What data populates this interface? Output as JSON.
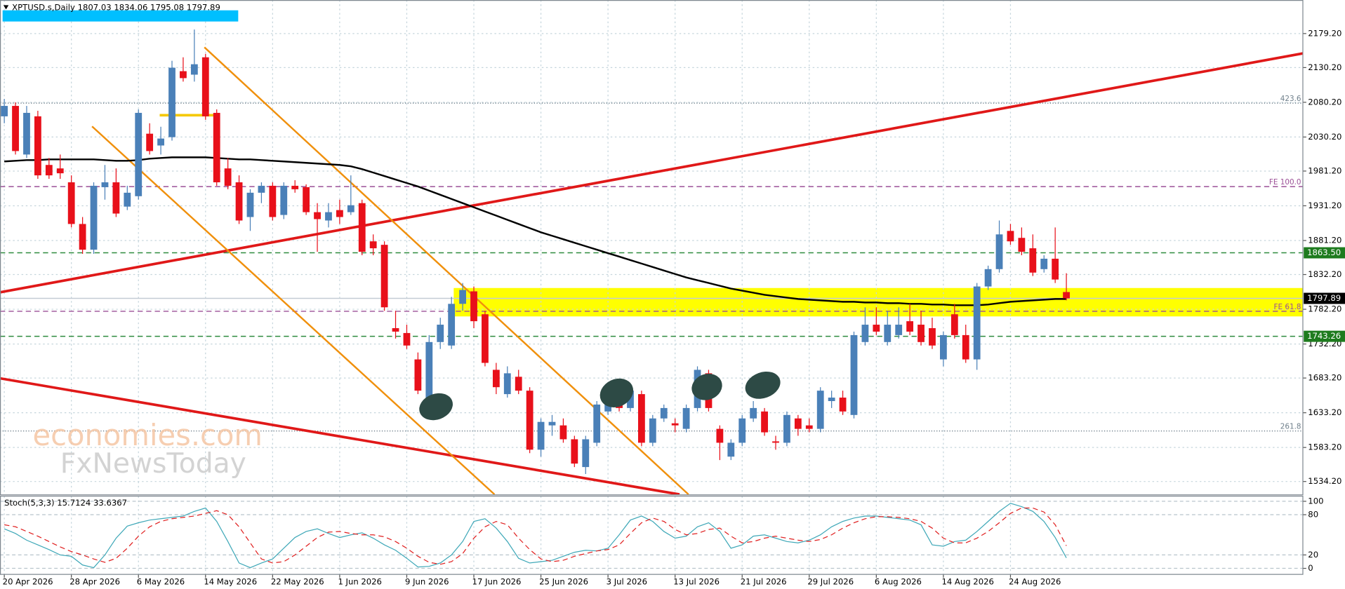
{
  "chart_data": [
    {
      "type": "candlestick",
      "title": "XPTUSD.s,Daily  1807.03 1834.06 1795.08 1797.89",
      "watermark": [
        "economies.com",
        "FxNewsToday"
      ],
      "categories": [
        "20 Apr 2026",
        null,
        null,
        null,
        null,
        null,
        "28 Apr 2026",
        null,
        null,
        null,
        null,
        null,
        "6 May 2026",
        null,
        null,
        null,
        null,
        null,
        "14 May 2026",
        null,
        null,
        null,
        null,
        null,
        "22 May 2026",
        null,
        null,
        null,
        null,
        null,
        "1 Jun 2026",
        null,
        null,
        null,
        null,
        null,
        "9 Jun 2026",
        null,
        null,
        null,
        null,
        null,
        "17 Jun 2026",
        null,
        null,
        null,
        null,
        null,
        "25 Jun 2026",
        null,
        null,
        null,
        null,
        null,
        "3 Jul 2026",
        null,
        null,
        null,
        null,
        null,
        "13 Jul 2026",
        null,
        null,
        null,
        null,
        null,
        "21 Jul 2026",
        null,
        null,
        null,
        null,
        null,
        "29 Jul 2026",
        null,
        null,
        null,
        null,
        null,
        "6 Aug 2026",
        null,
        null,
        null,
        null,
        null,
        "14 Aug 2026",
        null,
        null,
        null,
        null,
        null,
        "24 Aug 2026",
        null,
        null,
        null,
        null,
        null
      ],
      "open": [
        2060,
        2075,
        2005,
        2060,
        1990,
        1985,
        1965,
        1905,
        1868,
        1958,
        1965,
        1930,
        1945,
        2035,
        2018,
        2030,
        2125,
        2120,
        2145,
        2065,
        1985,
        1965,
        1915,
        1950,
        1960,
        1918,
        1960,
        1958,
        1922,
        1910,
        1925,
        1922,
        1935,
        1880,
        1875,
        1755,
        1748,
        1710,
        1655,
        1735,
        1730,
        1790,
        1808,
        1775,
        1695,
        1660,
        1685,
        1665,
        1580,
        1615,
        1615,
        1595,
        1555,
        1590,
        1635,
        1650,
        1640,
        1660,
        1590,
        1625,
        1618,
        1610,
        1640,
        1690,
        1610,
        1570,
        1590,
        1625,
        1635,
        1592,
        1590,
        1625,
        1615,
        1610,
        1650,
        1655,
        1630,
        1735,
        1760,
        1735,
        1745,
        1765,
        1760,
        1755,
        1710,
        1775,
        1745,
        1710,
        1815,
        1840,
        1895,
        1885,
        1870,
        1840,
        1855,
        1807.03
      ],
      "high": [
        2085,
        2080,
        2075,
        2068,
        2000,
        2005,
        1975,
        1915,
        1965,
        1990,
        1985,
        1960,
        2070,
        2050,
        2045,
        2140,
        2145,
        2185,
        2150,
        2070,
        2000,
        1975,
        1955,
        1965,
        1965,
        1965,
        1968,
        1962,
        1935,
        1935,
        1940,
        1975,
        1940,
        1890,
        1880,
        1780,
        1760,
        1720,
        1745,
        1770,
        1800,
        1820,
        1815,
        1780,
        1705,
        1700,
        1695,
        1670,
        1625,
        1630,
        1625,
        1600,
        1600,
        1650,
        1670,
        1665,
        1670,
        1665,
        1630,
        1645,
        1625,
        1645,
        1700,
        1695,
        1615,
        1595,
        1630,
        1650,
        1640,
        1600,
        1635,
        1630,
        1625,
        1670,
        1665,
        1665,
        1750,
        1785,
        1785,
        1780,
        1785,
        1790,
        1780,
        1770,
        1750,
        1790,
        1760,
        1820,
        1845,
        1910,
        1905,
        1900,
        1890,
        1860,
        1900,
        1834.06
      ],
      "low": [
        2050,
        2005,
        2000,
        1970,
        1970,
        1970,
        1900,
        1862,
        1862,
        1940,
        1915,
        1925,
        1940,
        2005,
        2005,
        2025,
        2110,
        2110,
        2055,
        1960,
        1955,
        1905,
        1895,
        1935,
        1910,
        1912,
        1950,
        1918,
        1865,
        1900,
        1905,
        1918,
        1860,
        1860,
        1780,
        1740,
        1725,
        1660,
        1645,
        1725,
        1725,
        1780,
        1755,
        1700,
        1660,
        1655,
        1660,
        1575,
        1570,
        1600,
        1590,
        1555,
        1545,
        1585,
        1630,
        1635,
        1635,
        1585,
        1585,
        1620,
        1605,
        1605,
        1635,
        1635,
        1565,
        1565,
        1585,
        1620,
        1600,
        1580,
        1585,
        1600,
        1605,
        1605,
        1640,
        1630,
        1625,
        1730,
        1745,
        1730,
        1740,
        1745,
        1730,
        1725,
        1700,
        1740,
        1705,
        1695,
        1810,
        1835,
        1875,
        1860,
        1830,
        1835,
        1820,
        1795.08
      ],
      "close": [
        2075,
        2010,
        2065,
        1975,
        1975,
        1978,
        1905,
        1868,
        1960,
        1965,
        1920,
        1950,
        2065,
        2010,
        2028,
        2130,
        2115,
        2135,
        2060,
        1965,
        1960,
        1910,
        1950,
        1960,
        1915,
        1960,
        1955,
        1922,
        1912,
        1922,
        1915,
        1932,
        1865,
        1870,
        1785,
        1750,
        1730,
        1665,
        1735,
        1760,
        1790,
        1810,
        1765,
        1705,
        1670,
        1690,
        1665,
        1580,
        1620,
        1620,
        1595,
        1560,
        1595,
        1645,
        1660,
        1640,
        1665,
        1590,
        1625,
        1640,
        1615,
        1640,
        1695,
        1640,
        1590,
        1590,
        1625,
        1640,
        1605,
        1590,
        1630,
        1610,
        1610,
        1665,
        1655,
        1635,
        1745,
        1760,
        1750,
        1760,
        1760,
        1750,
        1735,
        1730,
        1745,
        1745,
        1710,
        1815,
        1840,
        1890,
        1880,
        1865,
        1835,
        1855,
        1825,
        1797.89
      ],
      "up_color": "#4a80b8",
      "down_color": "#e8101a",
      "ma": {
        "color": "#000000",
        "values": [
          1995,
          1996,
          1997,
          1997,
          1998,
          1998,
          1998,
          1998,
          1998,
          1997,
          1996,
          1996,
          1997,
          1999,
          2000,
          2001,
          2001,
          2001,
          2001,
          2000,
          1999,
          1998,
          1998,
          1997,
          1996,
          1995,
          1994,
          1993,
          1992,
          1991,
          1990,
          1988,
          1984,
          1979,
          1974,
          1969,
          1964,
          1959,
          1953,
          1947,
          1941,
          1935,
          1929,
          1923,
          1917,
          1911,
          1905,
          1899,
          1893,
          1888,
          1883,
          1878,
          1873,
          1868,
          1863,
          1858,
          1853,
          1848,
          1843,
          1838,
          1833,
          1828,
          1824,
          1820,
          1816,
          1812,
          1809,
          1806,
          1803,
          1801,
          1799,
          1797,
          1796,
          1795,
          1794,
          1793,
          1793,
          1792,
          1792,
          1791,
          1791,
          1790,
          1790,
          1789,
          1789,
          1788,
          1788,
          1788,
          1789,
          1791,
          1793,
          1794,
          1795,
          1796,
          1797,
          1797
        ]
      },
      "ylim": [
        1515.6,
        2227.5
      ],
      "yticks": [
        {
          "value": 2179.2,
          "label": "2179.20"
        },
        {
          "value": 2130.2,
          "label": "2130.20"
        },
        {
          "value": 2080.2,
          "label": "2080.20"
        },
        {
          "value": 2030.2,
          "label": "2030.20"
        },
        {
          "value": 1981.2,
          "label": "1981.20"
        },
        {
          "value": 1931.2,
          "label": "1931.20"
        },
        {
          "value": 1881.2,
          "label": "1881.20"
        },
        {
          "value": 1832.2,
          "label": "1832.20"
        },
        {
          "value": 1782.2,
          "label": "1782.20"
        },
        {
          "value": 1732.2,
          "label": "1732.20"
        },
        {
          "value": 1683.2,
          "label": "1683.20"
        },
        {
          "value": 1633.2,
          "label": "1633.20"
        },
        {
          "value": 1583.2,
          "label": "1583.20"
        },
        {
          "value": 1534.2,
          "label": "1534.20"
        }
      ],
      "grid": true,
      "zone": {
        "from": 1771.9,
        "to": 1812.8,
        "x_start": 40.2,
        "color": "#ffff00"
      },
      "levels": [
        {
          "value": 2079,
          "label": "423.6",
          "color": "#70808c",
          "style": "dotted"
        },
        {
          "value": 1958.8,
          "label": "FE 100.0",
          "color": "#9b4f96",
          "style": "dashed"
        },
        {
          "value": 1863.5,
          "label": "1863.50",
          "color": "#2e8b3e",
          "style": "dashed",
          "box": "#1e7b1e"
        },
        {
          "value": 1797.89,
          "label": "1797.89",
          "color": "#c4ccd4",
          "style": "solid",
          "box": "#000000"
        },
        {
          "value": 1779.3,
          "label": "FE 61.8",
          "color": "#9b4f96",
          "style": "dashed"
        },
        {
          "value": 1743.26,
          "label": "1743.26",
          "color": "#2e8b3e",
          "style": "dashed",
          "box": "#1e7b1e"
        },
        {
          "value": 1607,
          "label": "261.8",
          "color": "#70808c",
          "style": "dotted"
        }
      ],
      "trend_lines": [
        {
          "x": [
            -0.4,
            116.2
          ],
          "y": [
            1806.6,
            2150.8
          ],
          "color": "#e01818",
          "width": 3
        },
        {
          "x": [
            -0.4,
            60.4
          ],
          "y": [
            1682.8,
            1515.6
          ],
          "color": "#e01818",
          "width": 3
        },
        {
          "x": [
            7.85,
            43.85
          ],
          "y": [
            2045.5,
            1515.6
          ],
          "color": "#f0900c",
          "width": 2
        },
        {
          "x": [
            17.9,
            61.2
          ],
          "y": [
            2159.4,
            1515.6
          ],
          "color": "#f0900c",
          "width": 2
        },
        {
          "x": [
            13.9,
            18.8
          ],
          "y": [
            2061.6,
            2061.6
          ],
          "color": "#f5c800",
          "width": 3
        }
      ]
    },
    {
      "type": "line",
      "title": "Stoch(5,3,3) 15.7124 33.6367",
      "ylim": [
        -9,
        107.7
      ],
      "yticks": [
        0,
        20,
        80,
        100
      ],
      "series": [
        {
          "color": "#3fa8b8",
          "style": "solid",
          "values": [
            59,
            52,
            42,
            35,
            28,
            20,
            18,
            5,
            1,
            20,
            45,
            63,
            68,
            72,
            74,
            76,
            78,
            85,
            90,
            70,
            40,
            8,
            1,
            8,
            14,
            30,
            46,
            55,
            59,
            52,
            46,
            50,
            53,
            45,
            35,
            27,
            15,
            2,
            3,
            8,
            20,
            40,
            70,
            74,
            60,
            40,
            15,
            8,
            10,
            12,
            18,
            24,
            27,
            26,
            30,
            50,
            72,
            78,
            70,
            55,
            45,
            48,
            62,
            68,
            55,
            30,
            35,
            48,
            50,
            45,
            40,
            38,
            42,
            50,
            62,
            70,
            75,
            78,
            78,
            76,
            74,
            72,
            65,
            35,
            33,
            40,
            42,
            55,
            70,
            85,
            97,
            92,
            85,
            70,
            46,
            15.7124
          ]
        },
        {
          "color": "#e02020",
          "style": "dashed",
          "values": [
            65,
            62,
            55,
            48,
            40,
            32,
            25,
            20,
            14,
            9,
            15,
            30,
            48,
            62,
            70,
            74,
            76,
            78,
            82,
            86,
            80,
            62,
            38,
            14,
            8,
            10,
            20,
            33,
            46,
            54,
            55,
            52,
            50,
            50,
            47,
            40,
            30,
            18,
            9,
            6,
            10,
            22,
            45,
            62,
            70,
            65,
            45,
            28,
            14,
            10,
            12,
            18,
            22,
            26,
            28,
            35,
            52,
            68,
            75,
            70,
            58,
            50,
            52,
            58,
            60,
            48,
            38,
            40,
            45,
            48,
            45,
            42,
            40,
            43,
            50,
            60,
            68,
            74,
            77,
            77,
            76,
            74,
            70,
            60,
            45,
            38,
            38,
            45,
            55,
            68,
            82,
            90,
            90,
            84,
            65,
            33.6367
          ]
        }
      ]
    }
  ]
}
